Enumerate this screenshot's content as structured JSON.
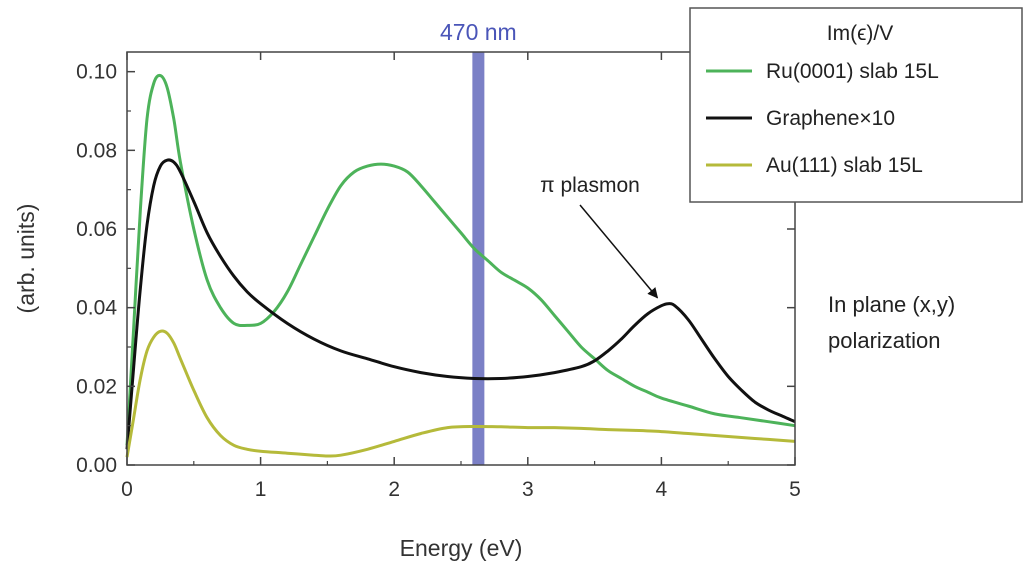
{
  "chart_data": {
    "type": "line",
    "xlabel": "Energy (eV)",
    "ylabel": "(arb. units)",
    "xlim": [
      0,
      5
    ],
    "ylim": [
      0,
      0.105
    ],
    "x_ticks": [
      "0",
      "1",
      "2",
      "3",
      "4",
      "5"
    ],
    "y_ticks": [
      "0.00",
      "0.02",
      "0.04",
      "0.06",
      "0.08",
      "0.10"
    ],
    "x_tick_values": [
      0,
      1,
      2,
      3,
      4,
      5
    ],
    "y_tick_values": [
      0,
      0.02,
      0.04,
      0.06,
      0.08,
      0.1
    ],
    "grid": false,
    "legend_title": "Im(ϵ)/V",
    "legend_position": "top-right",
    "series": [
      {
        "name": "Ru(0001) slab 15L",
        "color": "#4db35a",
        "x": [
          0,
          0.05,
          0.1,
          0.15,
          0.2,
          0.25,
          0.3,
          0.35,
          0.4,
          0.5,
          0.6,
          0.7,
          0.8,
          0.9,
          1.0,
          1.1,
          1.2,
          1.3,
          1.4,
          1.5,
          1.6,
          1.7,
          1.8,
          1.9,
          2.0,
          2.1,
          2.2,
          2.3,
          2.4,
          2.5,
          2.6,
          2.7,
          2.8,
          2.9,
          3.0,
          3.1,
          3.2,
          3.3,
          3.4,
          3.5,
          3.6,
          3.7,
          3.8,
          3.9,
          4.0,
          4.2,
          4.4,
          4.6,
          4.8,
          5.0
        ],
        "y": [
          0.005,
          0.035,
          0.065,
          0.088,
          0.097,
          0.099,
          0.096,
          0.088,
          0.077,
          0.06,
          0.047,
          0.04,
          0.036,
          0.0355,
          0.036,
          0.039,
          0.044,
          0.051,
          0.058,
          0.065,
          0.071,
          0.0745,
          0.076,
          0.0765,
          0.076,
          0.0745,
          0.071,
          0.067,
          0.063,
          0.059,
          0.055,
          0.052,
          0.049,
          0.047,
          0.045,
          0.042,
          0.038,
          0.034,
          0.03,
          0.027,
          0.024,
          0.022,
          0.02,
          0.0185,
          0.017,
          0.015,
          0.013,
          0.012,
          0.011,
          0.01
        ]
      },
      {
        "name": "Graphene×10",
        "color": "#111111",
        "x": [
          0,
          0.05,
          0.1,
          0.15,
          0.2,
          0.25,
          0.3,
          0.35,
          0.4,
          0.5,
          0.6,
          0.7,
          0.8,
          0.9,
          1.0,
          1.2,
          1.4,
          1.6,
          1.8,
          2.0,
          2.2,
          2.4,
          2.6,
          2.8,
          3.0,
          3.2,
          3.4,
          3.5,
          3.6,
          3.7,
          3.8,
          3.9,
          4.0,
          4.05,
          4.1,
          4.2,
          4.3,
          4.4,
          4.5,
          4.6,
          4.7,
          4.8,
          4.9,
          5.0
        ],
        "y": [
          0.004,
          0.025,
          0.045,
          0.061,
          0.071,
          0.076,
          0.0775,
          0.077,
          0.0745,
          0.067,
          0.059,
          0.053,
          0.048,
          0.044,
          0.041,
          0.036,
          0.032,
          0.029,
          0.027,
          0.025,
          0.0235,
          0.0225,
          0.022,
          0.022,
          0.0225,
          0.0235,
          0.025,
          0.0265,
          0.029,
          0.032,
          0.0355,
          0.0385,
          0.0405,
          0.041,
          0.0405,
          0.037,
          0.032,
          0.027,
          0.0225,
          0.019,
          0.016,
          0.014,
          0.0125,
          0.011
        ]
      },
      {
        "name": "Au(111) slab 15L",
        "color": "#b5ba3a",
        "x": [
          0,
          0.05,
          0.1,
          0.15,
          0.2,
          0.25,
          0.3,
          0.35,
          0.4,
          0.5,
          0.6,
          0.7,
          0.8,
          0.9,
          1.0,
          1.2,
          1.4,
          1.5,
          1.6,
          1.8,
          2.0,
          2.2,
          2.4,
          2.6,
          2.8,
          3.0,
          3.2,
          3.4,
          3.6,
          3.8,
          4.0,
          4.2,
          4.4,
          4.6,
          4.8,
          5.0
        ],
        "y": [
          0.002,
          0.012,
          0.022,
          0.029,
          0.0325,
          0.034,
          0.0335,
          0.031,
          0.027,
          0.019,
          0.012,
          0.0075,
          0.005,
          0.004,
          0.0035,
          0.003,
          0.0025,
          0.0023,
          0.0025,
          0.004,
          0.006,
          0.008,
          0.0095,
          0.0098,
          0.0097,
          0.0095,
          0.0095,
          0.0093,
          0.009,
          0.0088,
          0.0085,
          0.008,
          0.0075,
          0.007,
          0.0065,
          0.006
        ]
      }
    ],
    "marker": {
      "x": 2.63,
      "label": "470 nm",
      "color": "#7b80c6"
    },
    "annotation": {
      "text": "π plasmon",
      "target_x": 4.0,
      "target_y": 0.041,
      "arrow": true
    },
    "side_text": [
      "In plane (x,y)",
      "polarization"
    ]
  }
}
